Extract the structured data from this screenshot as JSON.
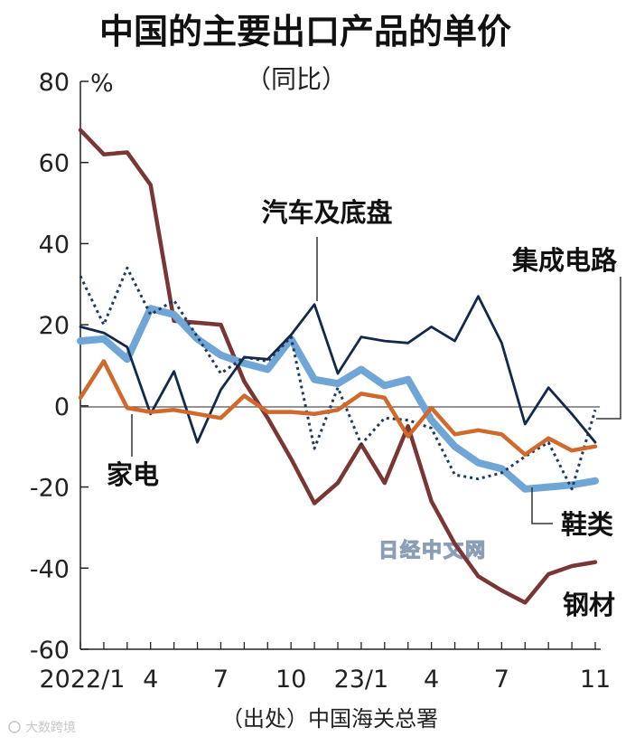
{
  "chart_data": {
    "type": "line",
    "title": "中国的主要出口产品的单价",
    "subtitle": "（同比）",
    "ylabel": "%",
    "ylim": [
      -60,
      80
    ],
    "yticks": [
      "80",
      "60",
      "40",
      "20",
      "0",
      "-20",
      "-40",
      "-60"
    ],
    "x": [
      "2022/1",
      "2022/2",
      "2022/3",
      "2022/4",
      "2022/5",
      "2022/6",
      "2022/7",
      "2022/8",
      "2022/9",
      "2022/10",
      "2022/11",
      "2022/12",
      "2023/1",
      "2023/2",
      "2023/3",
      "2023/4",
      "2023/5",
      "2023/6",
      "2023/7",
      "2023/8",
      "2023/9",
      "2023/10",
      "2023/11"
    ],
    "xtick_labels": [
      "2022/1",
      "4",
      "7",
      "10",
      "23/1",
      "4",
      "7",
      "11"
    ],
    "source": "（出处）中国海关总署",
    "grid": false,
    "series": [
      {
        "name": "钢材",
        "color": "#7a3535",
        "style": "solid",
        "values": [
          68,
          62,
          62.5,
          54.5,
          21,
          20.5,
          20,
          6,
          -3,
          -13,
          -24,
          -19,
          -9.5,
          -19,
          -5,
          -23.5,
          -34,
          -42,
          -45.5,
          -48.5,
          -41.5,
          -39.5,
          -38.5
        ]
      },
      {
        "name": "鞋类",
        "color": "#6fa6d6",
        "style": "thick",
        "values": [
          16,
          16.5,
          11.5,
          24,
          22.5,
          16.5,
          12.5,
          10.5,
          9,
          16.5,
          6.5,
          5.5,
          9,
          5,
          6.5,
          -3.5,
          -10,
          -14,
          -15.5,
          -20.5,
          -20,
          -19.5,
          -18.5
        ]
      },
      {
        "name": "集成电路",
        "color": "#1f3a5f",
        "style": "dotted",
        "values": [
          32,
          20,
          34,
          22.5,
          26,
          17,
          8,
          12,
          11,
          17,
          -10.5,
          4.5,
          -9.5,
          -3,
          -3.5,
          -5.5,
          -17,
          -18,
          -16.5,
          -12.5,
          -9,
          -20.5,
          -1
        ]
      },
      {
        "name": "汽车及底盘",
        "color": "#13294b",
        "style": "solid",
        "values": [
          19.5,
          18,
          14.5,
          -2,
          8.5,
          -9,
          4,
          12,
          11.5,
          17.5,
          25,
          8,
          17,
          16,
          15.5,
          19.5,
          16,
          27,
          15.5,
          -4.5,
          4.5,
          -2,
          -9
        ]
      },
      {
        "name": "家电",
        "color": "#d0692c",
        "style": "solid",
        "values": [
          2,
          11,
          -0.5,
          -1.5,
          -1,
          -2,
          -3,
          2.5,
          -1.5,
          -1.5,
          -2,
          -1,
          3,
          2,
          -7.5,
          -0.5,
          -7,
          -6,
          -7,
          -12,
          -8,
          -11,
          -10
        ]
      }
    ],
    "annotations": [
      "汽车及底盘",
      "集成电路",
      "家电",
      "鞋类",
      "钢材"
    ],
    "watermark": "日经中文网",
    "corner_mark": "大数跨境"
  }
}
